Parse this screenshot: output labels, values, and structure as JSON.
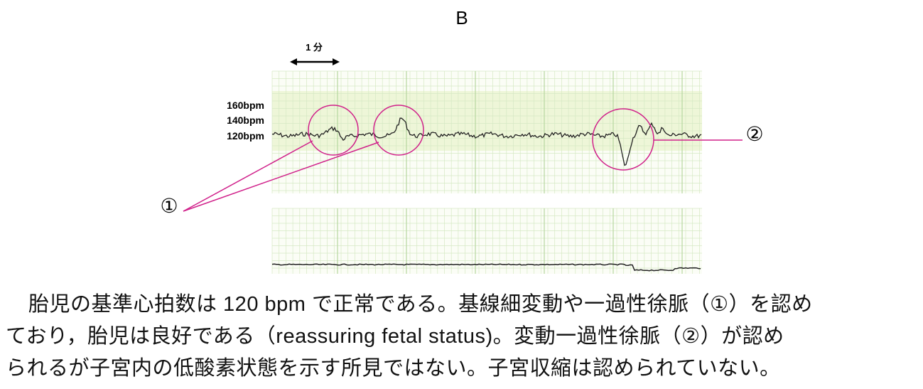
{
  "figure": {
    "label": "B",
    "time_scale": "1 分",
    "fhr_labels": [
      "160bpm",
      "140bpm",
      "120bpm"
    ],
    "markers": [
      "①",
      "②"
    ]
  },
  "caption": {
    "lines": [
      "胎児の基準心拍数は 120 bpm で正常である。基線細変動や一過性徐脈（①）を認め",
      "ており，胎児は良好である（reassuring fetal status)。変動一過性徐脈（②）が認め",
      "られるが子宮内の低酸素状態を示す所見ではない。子宮収縮は認められていない。"
    ]
  }
}
